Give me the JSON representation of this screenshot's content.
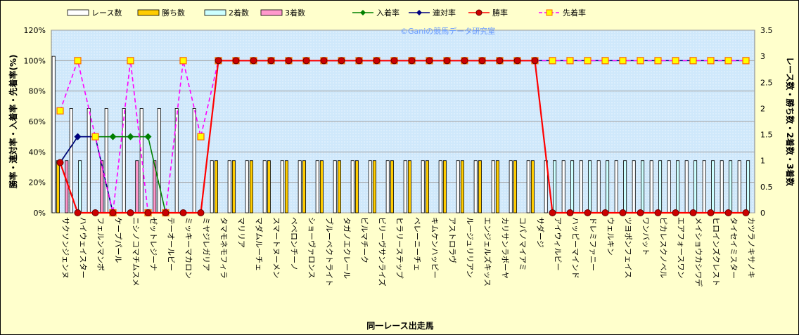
{
  "chart_data": {
    "type": "bar",
    "xlabel": "同一レース出走馬",
    "ylabel_left": "勝率・連対率・入着率・先着率(%)",
    "ylabel_right": "レース数・勝ち数・2着数・3着数",
    "watermark": "©Ganiの競馬データ研究室",
    "ylim_left": [
      0,
      120
    ],
    "ylim_right": [
      0,
      3.5
    ],
    "yticks_left": [
      "0%",
      "20%",
      "40%",
      "60%",
      "80%",
      "100%",
      "120%"
    ],
    "yticks_right": [
      "0",
      "0.5",
      "1",
      "1.5",
      "2",
      "2.5",
      "3",
      "3.5"
    ],
    "grid": true,
    "legend_position": "top",
    "categories": [
      "サクソンジェンヌ",
      "ハイウェイスター",
      "フェルンマンボ",
      "ケープパール",
      "ニシノコマチムスメ",
      "ゼットレジーナ",
      "テーオールビー",
      "ミッキーマカロン",
      "ミヤジレガリア",
      "タマモネモフィラ",
      "マリリア",
      "マダムルーチェ",
      "スマートヌーメン",
      "ベベロンチーノ",
      "ショーヴァロンス",
      "ブルーベクトライト",
      "タガノエクレール",
      "ビルマチーク",
      "ビリーヴサンライズ",
      "ヒラリーステップ",
      "ベレーニーチェ",
      "キムケンハッピー",
      "アストロラヴ",
      "ルージュリリアン",
      "エンジェルズキッス",
      "カリサンラボーヤ",
      "コパノマイアミ",
      "サダージ",
      "アイウィルビー",
      "ハッピーマインド",
      "ドレミファニー",
      "ウェルキン",
      "ツヨポンフェイス",
      "ワンバット",
      "ピカレスクノベル",
      "エアフォースワン",
      "メイショウカシワデ",
      "ヒロインズクレスト",
      "タイセイミスター",
      "カツラノキサノキ"
    ],
    "series": [
      {
        "name": "レース数",
        "type": "bar",
        "axis": "right",
        "color": "#ffffff",
        "values": [
          3,
          2,
          2,
          2,
          2,
          2,
          2,
          2,
          2,
          1,
          1,
          1,
          1,
          1,
          1,
          1,
          1,
          1,
          1,
          1,
          1,
          1,
          1,
          1,
          1,
          1,
          1,
          1,
          1,
          1,
          1,
          1,
          1,
          1,
          1,
          1,
          1,
          1,
          1,
          1
        ]
      },
      {
        "name": "勝ち数",
        "type": "bar",
        "axis": "right",
        "color": "#ffcc00",
        "values": [
          1,
          0,
          0,
          0,
          0,
          0,
          0,
          0,
          0,
          1,
          1,
          1,
          1,
          1,
          1,
          1,
          1,
          1,
          1,
          1,
          1,
          1,
          1,
          1,
          1,
          1,
          1,
          1,
          0,
          0,
          0,
          0,
          0,
          0,
          0,
          0,
          0,
          0,
          0,
          0
        ]
      },
      {
        "name": "2着数",
        "type": "bar",
        "axis": "right",
        "color": "#ccffff",
        "values": [
          0,
          1,
          0,
          0,
          0,
          0,
          0,
          0,
          0,
          0,
          0,
          0,
          0,
          0,
          0,
          0,
          0,
          0,
          0,
          0,
          0,
          0,
          0,
          0,
          0,
          0,
          0,
          0,
          1,
          1,
          1,
          1,
          1,
          1,
          1,
          1,
          1,
          1,
          1,
          1
        ]
      },
      {
        "name": "3着数",
        "type": "bar",
        "axis": "right",
        "color": "#ff99cc",
        "values": [
          1,
          0,
          1,
          0,
          1,
          1,
          0,
          0,
          0,
          0,
          0,
          0,
          0,
          0,
          0,
          0,
          0,
          0,
          0,
          0,
          0,
          0,
          0,
          0,
          0,
          0,
          0,
          0,
          0,
          0,
          0,
          0,
          0,
          0,
          0,
          0,
          0,
          0,
          0,
          0
        ]
      },
      {
        "name": "入着率",
        "type": "line",
        "axis": "left",
        "color": "#008000",
        "marker": "diamond",
        "values": [
          33,
          50,
          50,
          50,
          50,
          50,
          0,
          null,
          null,
          null,
          null,
          null,
          null,
          null,
          null,
          null,
          null,
          null,
          null,
          null,
          null,
          null,
          null,
          null,
          null,
          null,
          null,
          null,
          null,
          null,
          null,
          null,
          null,
          null,
          null,
          null,
          null,
          null,
          null,
          null
        ]
      },
      {
        "name": "連対率",
        "type": "line",
        "axis": "left",
        "color": "#000080",
        "marker": "diamond",
        "values": [
          33,
          50,
          50,
          0,
          null,
          null,
          null,
          null,
          null,
          100,
          100,
          100,
          100,
          100,
          100,
          100,
          100,
          100,
          100,
          100,
          100,
          100,
          100,
          100,
          100,
          100,
          100,
          100,
          100,
          100,
          100,
          100,
          100,
          100,
          100,
          100,
          100,
          100,
          100,
          100
        ]
      },
      {
        "name": "勝率",
        "type": "line",
        "axis": "left",
        "color": "#ff0000",
        "marker": "circle",
        "values": [
          33,
          0,
          0,
          0,
          0,
          0,
          0,
          0,
          0,
          100,
          100,
          100,
          100,
          100,
          100,
          100,
          100,
          100,
          100,
          100,
          100,
          100,
          100,
          100,
          100,
          100,
          100,
          100,
          0,
          0,
          0,
          0,
          0,
          0,
          0,
          0,
          0,
          0,
          0,
          0
        ]
      },
      {
        "name": "先着率",
        "type": "line",
        "axis": "left",
        "color": "#ff00ff",
        "dashed": true,
        "marker": "square",
        "values": [
          67,
          100,
          50,
          0,
          100,
          0,
          0,
          100,
          50,
          100,
          100,
          100,
          100,
          100,
          100,
          100,
          100,
          100,
          100,
          100,
          100,
          100,
          100,
          100,
          100,
          100,
          100,
          100,
          100,
          100,
          100,
          100,
          100,
          100,
          100,
          100,
          100,
          100,
          100,
          100
        ]
      }
    ]
  }
}
